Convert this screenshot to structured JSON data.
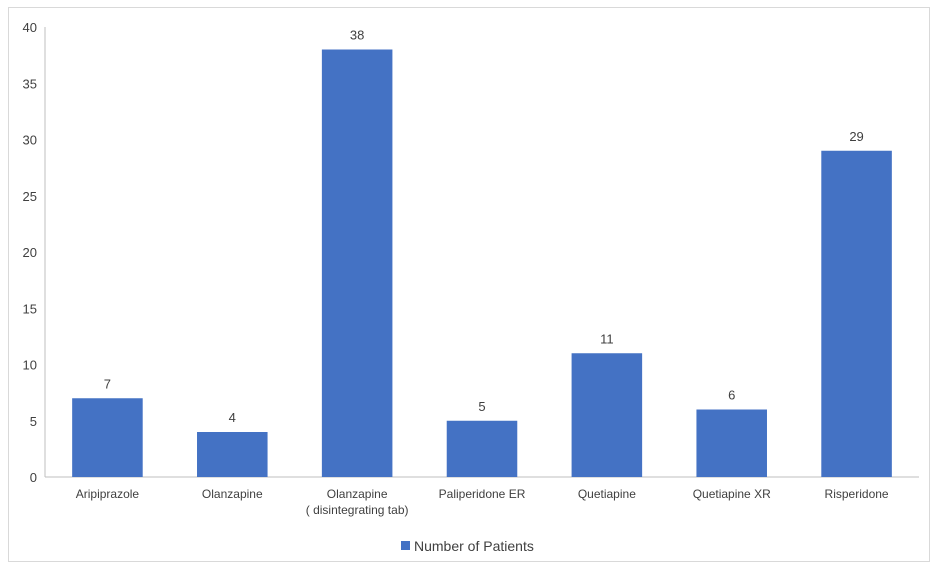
{
  "chart_data": {
    "type": "bar",
    "categories": [
      "Aripiprazole",
      "Olanzapine",
      "Olanzapine\n( disintegrating tab)",
      "Paliperidone ER",
      "Quetiapine",
      "Quetiapine XR",
      "Risperidone"
    ],
    "series": [
      {
        "name": "Number of Patients",
        "values": [
          7,
          4,
          38,
          5,
          11,
          6,
          29
        ]
      }
    ],
    "ylim": [
      0,
      40
    ],
    "yticks": [
      0,
      5,
      10,
      15,
      20,
      25,
      30,
      35,
      40
    ],
    "title": "",
    "xlabel": "",
    "ylabel": "",
    "grid": false,
    "legend_position": "bottom",
    "bar_color": "#4472C4",
    "axis_color": "#bfbfbf",
    "text_color": "#404040"
  }
}
